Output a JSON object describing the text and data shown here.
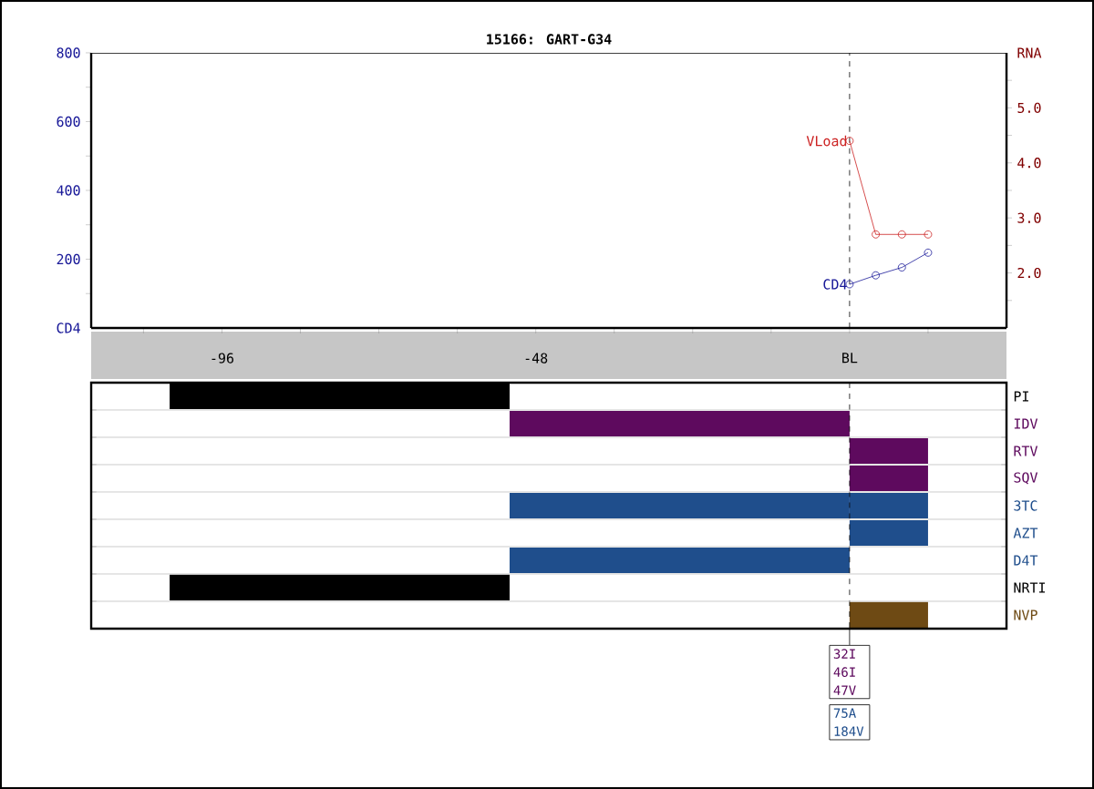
{
  "chart_data": [
    {
      "type": "line",
      "title": "15166: GART-G34",
      "ylabel": "CD4",
      "y2label": "RNA",
      "marker": "circle",
      "grid": false,
      "xlim": [
        -116,
        24
      ],
      "xticks": [
        {
          "value": -108,
          "label": null
        },
        -96,
        {
          "value": -84,
          "label": null
        },
        {
          "value": -72,
          "label": null
        },
        {
          "value": -60,
          "label": null
        },
        -48,
        {
          "value": -36,
          "label": null
        },
        {
          "value": -24,
          "label": null
        },
        {
          "value": -12,
          "label": null
        },
        {
          "value": 0,
          "label": "BL"
        },
        {
          "value": 12,
          "label": null
        }
      ],
      "ylim": [
        0,
        800
      ],
      "yticks": [
        {
          "value": 100,
          "label": null
        },
        200,
        {
          "value": 300,
          "label": null
        },
        400,
        {
          "value": 500,
          "label": null
        },
        600,
        {
          "value": 700,
          "label": null
        },
        800
      ],
      "y2lim": [
        1.0,
        6.0
      ],
      "y2ticks": [
        {
          "value": 1.5,
          "label": null
        },
        {
          "value": 2.0,
          "label": "2.0"
        },
        {
          "value": 2.5,
          "label": null
        },
        {
          "value": 3.0,
          "label": "3.0"
        },
        {
          "value": 3.5,
          "label": null
        },
        {
          "value": 4.0,
          "label": "4.0"
        },
        {
          "value": 4.5,
          "label": null
        },
        {
          "value": 5.0,
          "label": "5.0"
        },
        {
          "value": 5.5,
          "label": null
        }
      ],
      "ref_lines": [
        {
          "axis": "x",
          "value": 0,
          "line_style": "dashed"
        }
      ],
      "series": [
        {
          "name": "CD4",
          "color": "#1a1a99",
          "x": [
            0,
            4,
            8,
            12
          ],
          "values": [
            127,
            153,
            176,
            219
          ]
        },
        {
          "name": "VLoad",
          "color": "#cc2222",
          "axis": "y2",
          "x": [
            0,
            4,
            8,
            12
          ],
          "values": [
            4.4,
            2.7,
            2.7,
            2.7
          ]
        }
      ]
    },
    {
      "type": "bar",
      "orientation": "horizontal",
      "tick_labels": "y",
      "grid": "y",
      "xlim": [
        -116,
        24
      ],
      "categories": [
        "PI",
        "IDV",
        "RTV",
        "SQV",
        "3TC",
        "AZT",
        "D4T",
        "NRTI",
        "NVP"
      ],
      "ref_lines": [
        {
          "axis": "x",
          "value": 0,
          "line_style": "dashed"
        }
      ],
      "annotations": [
        "32I 46I 47V",
        "75A 184V"
      ],
      "series": [
        {
          "values": [
            52,
            52,
            null,
            null,
            52,
            null,
            52,
            52,
            null
          ],
          "base": [
            -104,
            -52,
            null,
            null,
            -52,
            null,
            -52,
            -104,
            null
          ],
          "colors": [
            "#000000",
            "#5e0a5e",
            null,
            null,
            "#1f4e8c",
            null,
            "#1f4e8c",
            "#000000",
            null
          ]
        },
        {
          "values": [
            null,
            null,
            12,
            12,
            12,
            12,
            null,
            null,
            12
          ],
          "base": [
            null,
            null,
            0,
            0,
            0,
            0,
            null,
            null,
            0
          ],
          "colors": [
            null,
            null,
            "#5e0a5e",
            "#5e0a5e",
            "#1f4e8c",
            "#1f4e8c",
            null,
            null,
            "#6e4a14"
          ]
        }
      ]
    }
  ]
}
